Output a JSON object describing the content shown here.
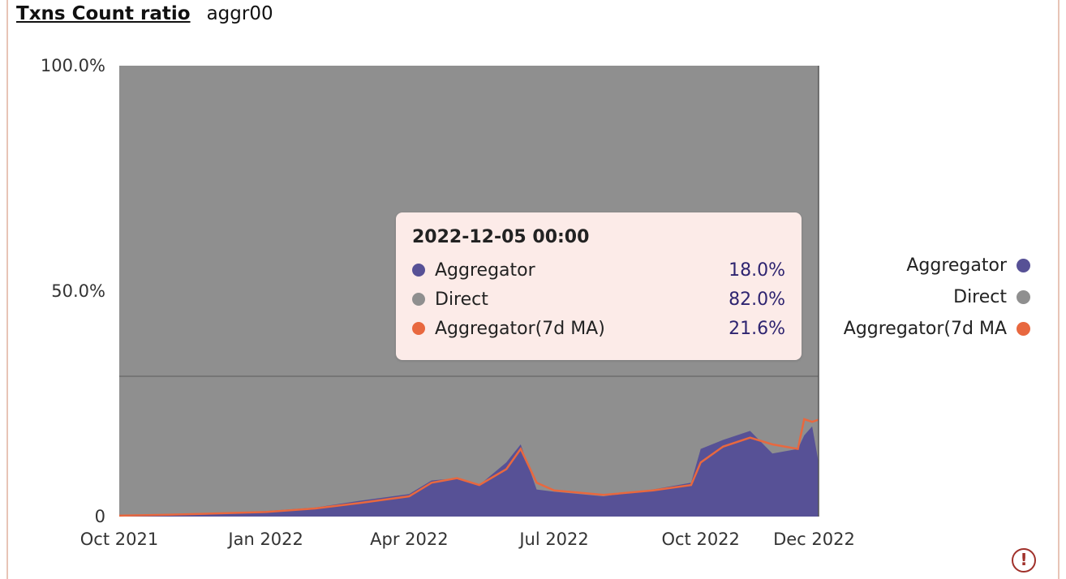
{
  "header": {
    "title": "Txns Count ratio",
    "subtitle": "aggr00"
  },
  "colors": {
    "aggregator": "#575196",
    "direct": "#8f8f8f",
    "ma": "#e8683f",
    "tooltip_bg": "#fcebe8"
  },
  "tooltip": {
    "date": "2022-12-05 00:00",
    "rows": [
      {
        "name": "Aggregator",
        "value": "18.0%"
      },
      {
        "name": "Direct",
        "value": "82.0%"
      },
      {
        "name": "Aggregator(7d MA)",
        "value": "21.6%"
      }
    ]
  },
  "legend": [
    {
      "label": "Aggregator",
      "color": "#575196"
    },
    {
      "label": "Direct",
      "color": "#8f8f8f"
    },
    {
      "label": "Aggregator(7d MA",
      "color": "#e8683f"
    }
  ],
  "warning_icon": "exclamation-circle-icon",
  "chart_data": {
    "type": "area",
    "stacked": true,
    "x_ticks": [
      "Oct 2021",
      "Jan 2022",
      "Apr 2022",
      "Jul 2022",
      "Oct 2022",
      "Dec 2022"
    ],
    "y_ticks": [
      "0",
      "50.0%",
      "100.0%"
    ],
    "ylim": [
      0,
      100
    ],
    "xlim": [
      "2021-10-01",
      "2022-12-14"
    ],
    "series": [
      {
        "name": "Aggregator",
        "x": [
          "2021-10-01",
          "2021-11-01",
          "2021-12-01",
          "2022-01-01",
          "2022-02-01",
          "2022-03-01",
          "2022-04-01",
          "2022-04-15",
          "2022-05-01",
          "2022-05-15",
          "2022-06-01",
          "2022-06-10",
          "2022-06-20",
          "2022-07-01",
          "2022-08-01",
          "2022-09-01",
          "2022-09-25",
          "2022-10-01",
          "2022-10-15",
          "2022-11-01",
          "2022-11-15",
          "2022-12-01",
          "2022-12-05",
          "2022-12-10",
          "2022-12-14"
        ],
        "values": [
          0.2,
          0.5,
          0.8,
          1.2,
          2.0,
          3.5,
          5.0,
          8.0,
          8.5,
          7.0,
          12.0,
          16.0,
          6.0,
          5.5,
          4.5,
          6.0,
          7.5,
          15.0,
          17.0,
          19.0,
          14.0,
          15.0,
          18.0,
          20.0,
          12.0
        ]
      },
      {
        "name": "Direct",
        "x": [
          "2021-10-01",
          "2022-12-14"
        ],
        "values": [
          99.8,
          88.0
        ]
      },
      {
        "name": "Aggregator(7d MA)",
        "x": [
          "2021-10-01",
          "2021-11-01",
          "2021-12-01",
          "2022-01-01",
          "2022-02-01",
          "2022-03-01",
          "2022-04-01",
          "2022-04-15",
          "2022-05-01",
          "2022-05-15",
          "2022-06-01",
          "2022-06-10",
          "2022-06-20",
          "2022-07-01",
          "2022-08-01",
          "2022-09-01",
          "2022-09-25",
          "2022-10-01",
          "2022-10-15",
          "2022-11-01",
          "2022-11-15",
          "2022-12-01",
          "2022-12-05",
          "2022-12-10",
          "2022-12-14"
        ],
        "values": [
          0.2,
          0.4,
          0.7,
          1.0,
          1.8,
          3.0,
          4.5,
          7.5,
          8.5,
          7.0,
          10.5,
          15.0,
          7.5,
          5.8,
          4.8,
          5.8,
          7.0,
          12.0,
          15.5,
          17.5,
          16.0,
          15.0,
          21.6,
          21.0,
          21.5
        ]
      }
    ],
    "legend_position": "right",
    "grid": false
  }
}
